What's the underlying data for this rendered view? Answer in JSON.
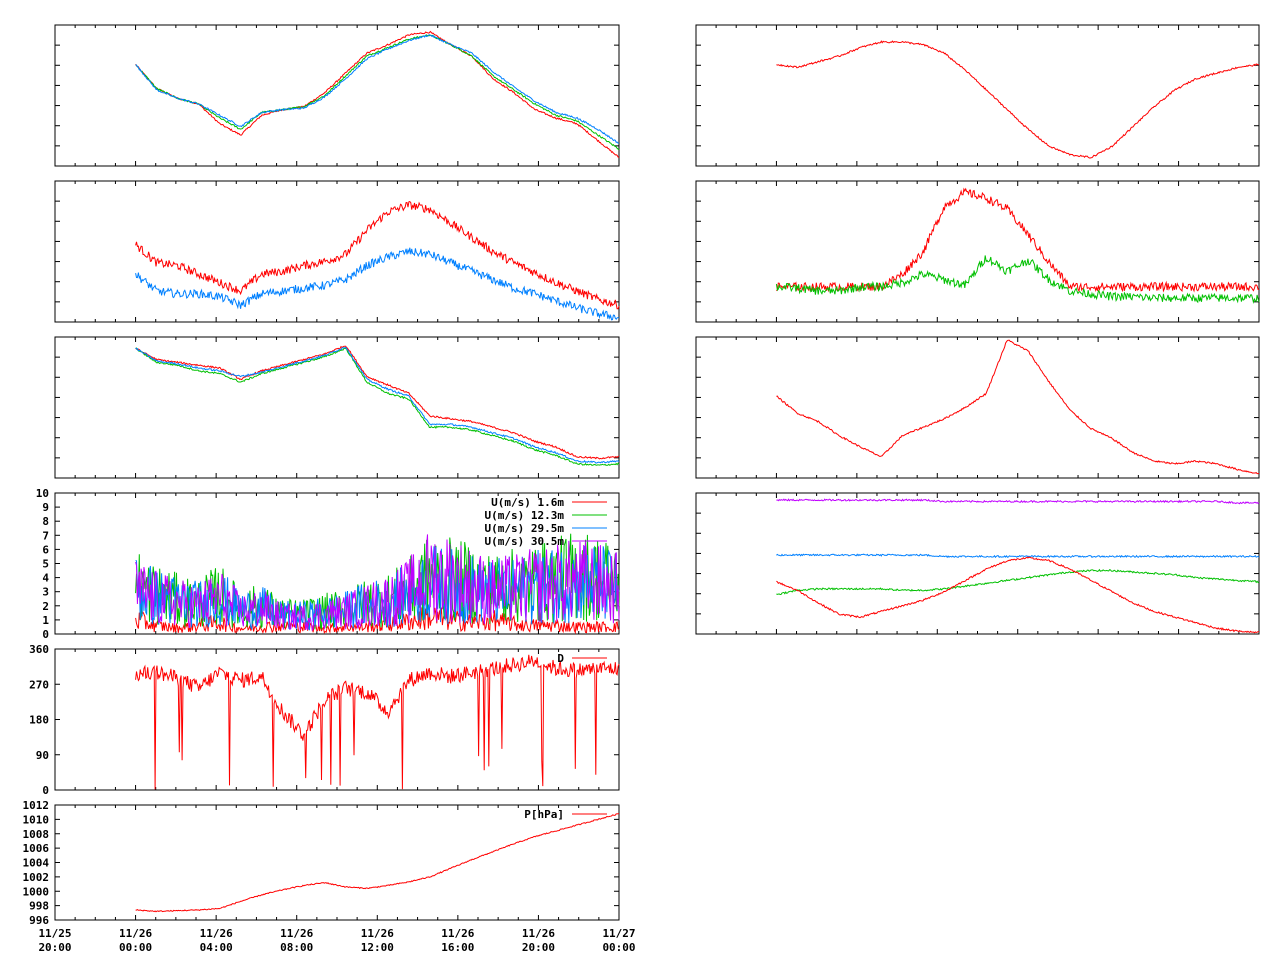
{
  "colors": {
    "red": "#ff0000",
    "green": "#00c000",
    "blue": "#0080ff",
    "purple": "#c000ff",
    "frame": "#000000"
  },
  "x_axis": {
    "range": [
      "11/25 20:00",
      "11/27 00:00"
    ],
    "tick_labels": [
      {
        "date": "11/25",
        "time": "20:00"
      },
      {
        "date": "11/26",
        "time": "00:00"
      },
      {
        "date": "11/26",
        "time": "04:00"
      },
      {
        "date": "11/26",
        "time": "08:00"
      },
      {
        "date": "11/26",
        "time": "12:00"
      },
      {
        "date": "11/26",
        "time": "16:00"
      },
      {
        "date": "11/26",
        "time": "20:00"
      },
      {
        "date": "11/27",
        "time": "00:00"
      }
    ]
  },
  "chart_data": [
    {
      "id": "left-1",
      "type": "line",
      "column": "left",
      "row": 1,
      "series": [
        {
          "color": "red",
          "values": [
            0.72,
            0.55,
            0.48,
            0.44,
            0.3,
            0.22,
            0.36,
            0.4,
            0.42,
            0.52,
            0.66,
            0.8,
            0.86,
            0.93,
            0.95,
            0.86,
            0.78,
            0.62,
            0.52,
            0.4,
            0.34,
            0.3,
            0.18,
            0.06
          ]
        },
        {
          "color": "green",
          "values": [
            0.72,
            0.55,
            0.48,
            0.44,
            0.34,
            0.26,
            0.38,
            0.4,
            0.42,
            0.5,
            0.64,
            0.78,
            0.84,
            0.9,
            0.93,
            0.86,
            0.78,
            0.64,
            0.54,
            0.44,
            0.36,
            0.32,
            0.22,
            0.12
          ]
        },
        {
          "color": "blue",
          "values": [
            0.72,
            0.54,
            0.48,
            0.44,
            0.36,
            0.28,
            0.38,
            0.4,
            0.41,
            0.49,
            0.62,
            0.76,
            0.83,
            0.89,
            0.93,
            0.86,
            0.8,
            0.67,
            0.56,
            0.46,
            0.38,
            0.34,
            0.26,
            0.16
          ]
        }
      ]
    },
    {
      "id": "left-2",
      "type": "line",
      "column": "left",
      "row": 2,
      "series": [
        {
          "color": "red",
          "values": [
            0.55,
            0.42,
            0.4,
            0.34,
            0.28,
            0.22,
            0.34,
            0.36,
            0.4,
            0.43,
            0.48,
            0.65,
            0.78,
            0.83,
            0.8,
            0.7,
            0.6,
            0.5,
            0.42,
            0.35,
            0.28,
            0.22,
            0.16,
            0.12
          ]
        },
        {
          "color": "blue",
          "values": [
            0.34,
            0.22,
            0.2,
            0.2,
            0.18,
            0.12,
            0.2,
            0.22,
            0.24,
            0.26,
            0.3,
            0.4,
            0.46,
            0.5,
            0.48,
            0.42,
            0.36,
            0.3,
            0.24,
            0.2,
            0.15,
            0.1,
            0.06,
            0.03
          ]
        }
      ]
    },
    {
      "id": "left-3",
      "type": "line",
      "column": "left",
      "row": 3,
      "series": [
        {
          "color": "red",
          "values": [
            0.92,
            0.84,
            0.82,
            0.8,
            0.78,
            0.7,
            0.76,
            0.8,
            0.84,
            0.88,
            0.94,
            0.72,
            0.66,
            0.6,
            0.44,
            0.42,
            0.4,
            0.36,
            0.32,
            0.26,
            0.22,
            0.15,
            0.14,
            0.15
          ]
        },
        {
          "color": "green",
          "values": [
            0.92,
            0.82,
            0.8,
            0.76,
            0.74,
            0.68,
            0.74,
            0.78,
            0.82,
            0.86,
            0.92,
            0.68,
            0.6,
            0.56,
            0.36,
            0.36,
            0.34,
            0.3,
            0.26,
            0.2,
            0.16,
            0.1,
            0.09,
            0.1
          ]
        },
        {
          "color": "blue",
          "values": [
            0.92,
            0.83,
            0.81,
            0.78,
            0.76,
            0.72,
            0.75,
            0.79,
            0.83,
            0.87,
            0.93,
            0.7,
            0.63,
            0.58,
            0.38,
            0.38,
            0.36,
            0.32,
            0.28,
            0.22,
            0.18,
            0.12,
            0.11,
            0.12
          ]
        }
      ]
    },
    {
      "id": "left-4",
      "type": "line",
      "column": "left",
      "row": 4,
      "ylim": [
        0,
        10
      ],
      "y_tick_labels": [
        "0",
        "1",
        "2",
        "3",
        "4",
        "5",
        "6",
        "7",
        "8",
        "9",
        "10"
      ],
      "legend": [
        "U(m/s)  1.6m",
        "U(m/s) 12.3m",
        "U(m/s) 29.5m",
        "U(m/s) 30.5m"
      ],
      "legend_position": "top-right",
      "series": [
        {
          "name": "U(m/s)  1.6m",
          "color": "red",
          "values": [
            1.0,
            0.6,
            0.4,
            0.6,
            0.8,
            0.4,
            0.5,
            0.6,
            0.5,
            0.4,
            0.5,
            0.5,
            0.7,
            0.9,
            1.2,
            1.0,
            0.8,
            1.0,
            0.7,
            0.6,
            0.6,
            0.5,
            0.5,
            0.5
          ]
        },
        {
          "name": "U(m/s) 12.3m",
          "color": "green",
          "values": [
            3.5,
            2.8,
            2.4,
            2.2,
            2.8,
            1.8,
            2.0,
            1.4,
            1.4,
            1.6,
            1.8,
            2.2,
            2.4,
            3.0,
            4.0,
            3.8,
            3.6,
            3.2,
            3.4,
            3.6,
            3.8,
            4.2,
            4.0,
            3.6
          ]
        },
        {
          "name": "U(m/s) 29.5m",
          "color": "blue",
          "values": [
            3.2,
            2.6,
            2.3,
            2.1,
            2.6,
            1.7,
            1.9,
            1.3,
            1.3,
            1.5,
            1.7,
            2.1,
            2.3,
            2.8,
            3.6,
            3.4,
            3.2,
            3.0,
            3.1,
            3.3,
            3.5,
            3.8,
            3.6,
            3.3
          ]
        },
        {
          "name": "U(m/s) 30.5m",
          "color": "purple",
          "values": [
            3.0,
            2.5,
            2.2,
            2.0,
            2.6,
            1.6,
            1.8,
            1.2,
            1.2,
            1.4,
            1.6,
            2.0,
            2.4,
            3.0,
            4.2,
            4.0,
            3.4,
            3.0,
            3.2,
            3.4,
            3.6,
            3.8,
            3.6,
            3.2
          ]
        }
      ]
    },
    {
      "id": "left-5",
      "type": "line",
      "column": "left",
      "row": 5,
      "ylim": [
        0,
        360
      ],
      "y_tick_labels": [
        "0",
        "90",
        "180",
        "270",
        "360"
      ],
      "legend": [
        "D"
      ],
      "legend_position": "top-right",
      "series": [
        {
          "name": "D",
          "color": "red",
          "values": [
            295,
            300,
            285,
            260,
            300,
            280,
            290,
            200,
            140,
            230,
            260,
            250,
            200,
            280,
            300,
            290,
            300,
            310,
            320,
            330,
            310,
            305,
            310,
            310
          ]
        }
      ]
    },
    {
      "id": "left-6",
      "type": "line",
      "column": "left",
      "row": 6,
      "ylim": [
        996,
        1012
      ],
      "y_tick_labels": [
        "996",
        "998",
        "1000",
        "1002",
        "1004",
        "1006",
        "1008",
        "1010",
        "1012"
      ],
      "legend": [
        "P[hPa]"
      ],
      "legend_position": "top-right",
      "series": [
        {
          "name": "P[hPa]",
          "color": "red",
          "values": [
            997.4,
            997.2,
            997.3,
            997.4,
            997.6,
            998.6,
            999.5,
            1000.2,
            1000.8,
            1001.2,
            1000.6,
            1000.4,
            1000.8,
            1001.3,
            1002.0,
            1003.2,
            1004.4,
            1005.5,
            1006.6,
            1007.6,
            1008.4,
            1009.2,
            1010.0,
            1010.8
          ]
        }
      ]
    },
    {
      "id": "right-1",
      "type": "line",
      "column": "right",
      "row": 1,
      "series": [
        {
          "color": "red",
          "values": [
            0.72,
            0.7,
            0.74,
            0.78,
            0.84,
            0.88,
            0.88,
            0.86,
            0.8,
            0.68,
            0.54,
            0.4,
            0.26,
            0.14,
            0.08,
            0.06,
            0.14,
            0.28,
            0.42,
            0.54,
            0.62,
            0.66,
            0.7,
            0.72
          ]
        }
      ]
    },
    {
      "id": "right-2",
      "type": "line",
      "column": "right",
      "row": 2,
      "series": [
        {
          "color": "red",
          "values": [
            0.25,
            0.25,
            0.25,
            0.25,
            0.25,
            0.25,
            0.34,
            0.5,
            0.82,
            0.92,
            0.88,
            0.8,
            0.62,
            0.42,
            0.25,
            0.25,
            0.25,
            0.25,
            0.25,
            0.25,
            0.25,
            0.25,
            0.25,
            0.25
          ]
        },
        {
          "color": "green",
          "values": [
            0.25,
            0.24,
            0.22,
            0.22,
            0.25,
            0.25,
            0.28,
            0.34,
            0.3,
            0.26,
            0.46,
            0.36,
            0.44,
            0.3,
            0.22,
            0.2,
            0.18,
            0.18,
            0.17,
            0.17,
            0.17,
            0.17,
            0.17,
            0.17
          ]
        }
      ]
    },
    {
      "id": "right-3",
      "type": "line",
      "column": "right",
      "row": 3,
      "series": [
        {
          "color": "red",
          "values": [
            0.58,
            0.46,
            0.4,
            0.3,
            0.22,
            0.15,
            0.3,
            0.36,
            0.42,
            0.5,
            0.6,
            0.98,
            0.9,
            0.68,
            0.48,
            0.35,
            0.28,
            0.18,
            0.12,
            0.1,
            0.12,
            0.1,
            0.06,
            0.03
          ]
        }
      ]
    },
    {
      "id": "right-4",
      "type": "line",
      "column": "right",
      "row": 4,
      "series": [
        {
          "color": "purple",
          "values": [
            0.95,
            0.95,
            0.95,
            0.95,
            0.95,
            0.95,
            0.95,
            0.95,
            0.94,
            0.94,
            0.94,
            0.94,
            0.94,
            0.94,
            0.94,
            0.94,
            0.94,
            0.94,
            0.94,
            0.94,
            0.94,
            0.94,
            0.93,
            0.93
          ]
        },
        {
          "color": "blue",
          "values": [
            0.56,
            0.56,
            0.56,
            0.56,
            0.56,
            0.56,
            0.56,
            0.56,
            0.55,
            0.55,
            0.55,
            0.55,
            0.55,
            0.55,
            0.55,
            0.55,
            0.55,
            0.55,
            0.55,
            0.55,
            0.55,
            0.55,
            0.55,
            0.55
          ]
        },
        {
          "color": "green",
          "values": [
            0.28,
            0.31,
            0.32,
            0.32,
            0.32,
            0.32,
            0.31,
            0.31,
            0.32,
            0.34,
            0.36,
            0.38,
            0.4,
            0.42,
            0.44,
            0.45,
            0.45,
            0.44,
            0.43,
            0.42,
            0.4,
            0.39,
            0.38,
            0.37
          ]
        },
        {
          "color": "red",
          "values": [
            0.37,
            0.31,
            0.22,
            0.14,
            0.12,
            0.16,
            0.2,
            0.24,
            0.3,
            0.38,
            0.46,
            0.52,
            0.54,
            0.52,
            0.46,
            0.38,
            0.3,
            0.22,
            0.16,
            0.12,
            0.08,
            0.04,
            0.02,
            0.01
          ]
        }
      ]
    }
  ]
}
